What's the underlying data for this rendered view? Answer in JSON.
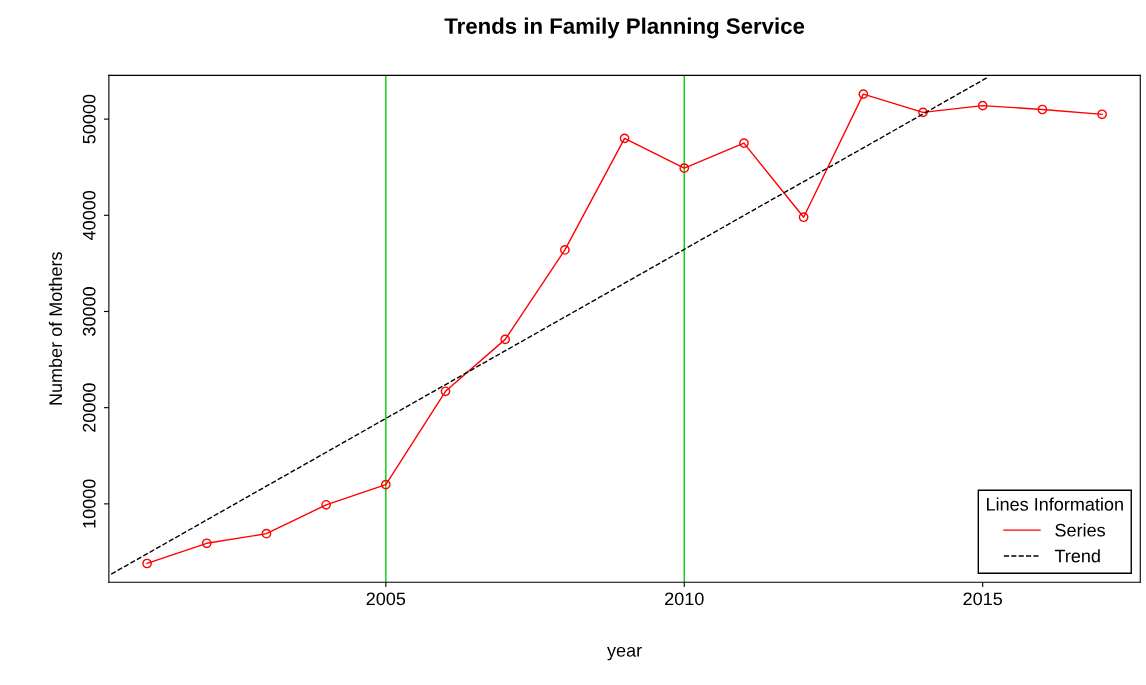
{
  "chart_data": {
    "type": "line",
    "title": "Trends in Family Planning Service",
    "xlabel": "year",
    "ylabel": "Number of Mothers",
    "legend_title": "Lines Information",
    "x": [
      2001,
      2002,
      2003,
      2004,
      2005,
      2006,
      2007,
      2008,
      2009,
      2010,
      2011,
      2012,
      2013,
      2014,
      2015,
      2016,
      2017
    ],
    "series": [
      {
        "name": "Series",
        "color": "#ff0000",
        "marker": "circle",
        "line_style": "solid",
        "values": [
          3800,
          5900,
          6900,
          9900,
          12000,
          21700,
          27100,
          36400,
          48000,
          44900,
          47500,
          39800,
          52600,
          50700,
          51400,
          51000,
          50500
        ]
      },
      {
        "name": "Trend",
        "color": "#000000",
        "marker": "none",
        "line_style": "dashed",
        "x": [
          2000.4,
          2015.1
        ],
        "values": [
          2700,
          54400
        ]
      }
    ],
    "ref_lines": [
      {
        "axis": "x",
        "value": 2005,
        "color": "#00cc00",
        "line_style": "solid"
      },
      {
        "axis": "x",
        "value": 2010,
        "color": "#00cc00",
        "line_style": "solid"
      }
    ],
    "xlim": [
      2000.36,
      2017.64
    ],
    "ylim": [
      1850,
      54550
    ],
    "xticks": [
      2005,
      2010,
      2015
    ],
    "yticks": [
      10000,
      20000,
      30000,
      40000,
      50000
    ],
    "grid": false,
    "legend": "bottom right"
  }
}
